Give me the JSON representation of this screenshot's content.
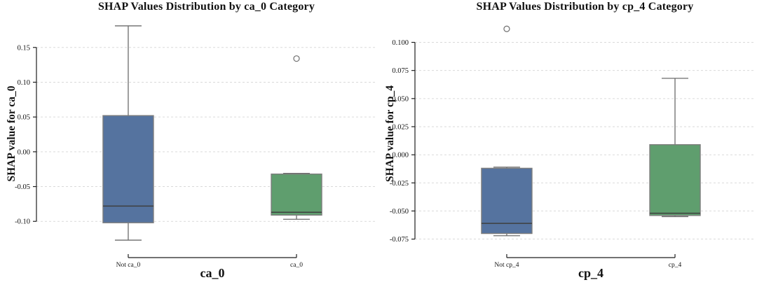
{
  "figure": {
    "background": "#ffffff"
  },
  "colors": {
    "box_blue": "#55739F",
    "box_green": "#5F9E6E",
    "box_edge": "#7d7d7d",
    "median": "#3f3f3f",
    "whisker": "#6b6b6b",
    "outlier_edge": "#6e6e6e",
    "gridline": "#dadada",
    "axis": "#1f1f1f",
    "text": "#111111"
  },
  "chart_data": [
    {
      "type": "box",
      "title": "SHAP Values Distribution by ca_0 Category",
      "xlabel": "ca_0",
      "ylabel": "SHAP value for ca_0",
      "legend": "none",
      "grid": "horizontal-dashed",
      "ylim": [
        -0.136,
        0.188
      ],
      "yticks": [
        0.15,
        0.1,
        0.05,
        0.0,
        -0.05,
        -0.1
      ],
      "ytick_labels": [
        "0.15",
        "0.10",
        "0.05",
        "0.00",
        "-0.05",
        "-0.10"
      ],
      "categories": [
        "Not ca_0",
        "ca_0"
      ],
      "boxes": [
        {
          "category": "Not ca_0",
          "color": "#55739F",
          "whisker_low": -0.127,
          "q1": -0.102,
          "median": -0.078,
          "q3": 0.052,
          "whisker_high": 0.181,
          "outliers": []
        },
        {
          "category": "ca_0",
          "color": "#5F9E6E",
          "whisker_low": -0.097,
          "q1": -0.091,
          "median": -0.087,
          "q3": -0.032,
          "whisker_high": -0.031,
          "outliers": [
            0.134
          ]
        }
      ]
    },
    {
      "type": "box",
      "title": "SHAP Values Distribution by cp_4 Category",
      "xlabel": "cp_4",
      "ylabel": "SHAP value for cp_4",
      "legend": "none",
      "grid": "horizontal-dashed",
      "ylim": [
        -0.0815,
        0.119
      ],
      "yticks": [
        0.1,
        0.075,
        0.05,
        0.025,
        0.0,
        -0.025,
        -0.05,
        -0.075
      ],
      "ytick_labels": [
        "0.100",
        "0.075",
        "0.050",
        "0.025",
        "0.000",
        "-0.025",
        "-0.050",
        "-0.075"
      ],
      "categories": [
        "Not cp_4",
        "cp_4"
      ],
      "boxes": [
        {
          "category": "Not cp_4",
          "color": "#55739F",
          "whisker_low": -0.072,
          "q1": -0.07,
          "median": -0.061,
          "q3": -0.012,
          "whisker_high": -0.011,
          "outliers": [
            0.112
          ]
        },
        {
          "category": "cp_4",
          "color": "#5F9E6E",
          "whisker_low": -0.055,
          "q1": -0.054,
          "median": -0.052,
          "q3": 0.009,
          "whisker_high": 0.068,
          "outliers": []
        }
      ]
    }
  ]
}
